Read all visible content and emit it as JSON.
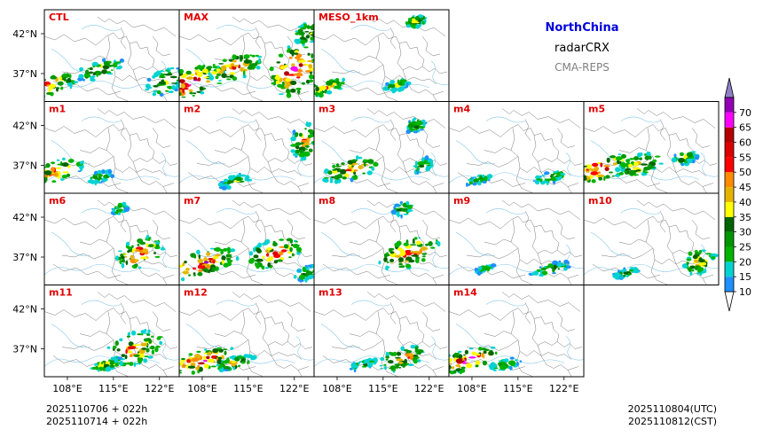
{
  "header": {
    "region": "NorthChina",
    "variable": "radarCRX",
    "system": "CMA-REPS",
    "region_color": "#0000dd",
    "system_color": "#808080"
  },
  "footer": {
    "init_utc": "2025110706  +  022h",
    "init_cst": "2025110714  +  022h",
    "valid_utc": "2025110804(UTC)",
    "valid_cst": "2025110812(CST)"
  },
  "chart_data": {
    "type": "heatmap",
    "title": "NorthChina radarCRX CMA-REPS",
    "panels": [
      {
        "label": "CTL",
        "row": 0,
        "col": 0,
        "blobs": [
          [
            105,
            35.5,
            0.45,
            0.3,
            0.7
          ],
          [
            113,
            37.5,
            0.35,
            0.25,
            0.5
          ],
          [
            123,
            36,
            0.3,
            0.35,
            0.5
          ]
        ]
      },
      {
        "label": "MAX",
        "row": 0,
        "col": 1,
        "blobs": [
          [
            106,
            35.8,
            0.55,
            0.4,
            1.0
          ],
          [
            113,
            37.8,
            0.4,
            0.35,
            0.8
          ],
          [
            122,
            37.5,
            0.35,
            0.7,
            1.0
          ],
          [
            124,
            42,
            0.2,
            0.3,
            0.6
          ]
        ]
      },
      {
        "label": "MESO_1km",
        "row": 0,
        "col": 2,
        "blobs": [
          [
            106,
            35.2,
            0.35,
            0.2,
            0.6
          ],
          [
            120,
            43.5,
            0.15,
            0.15,
            0.7
          ],
          [
            117,
            35.5,
            0.2,
            0.15,
            0.4
          ]
        ]
      },
      {
        "label": "m1",
        "row": 1,
        "col": 0,
        "blobs": [
          [
            106,
            36.2,
            0.45,
            0.3,
            0.7
          ],
          [
            113,
            35.5,
            0.2,
            0.15,
            0.4
          ]
        ]
      },
      {
        "label": "m2",
        "row": 1,
        "col": 1,
        "blobs": [
          [
            123.5,
            40,
            0.2,
            0.5,
            0.6
          ],
          [
            113,
            35,
            0.25,
            0.15,
            0.4
          ]
        ]
      },
      {
        "label": "m3",
        "row": 1,
        "col": 2,
        "blobs": [
          [
            110,
            36.5,
            0.45,
            0.3,
            0.7
          ],
          [
            120,
            42,
            0.15,
            0.2,
            0.4
          ],
          [
            121,
            37,
            0.15,
            0.2,
            0.4
          ]
        ]
      },
      {
        "label": "m4",
        "row": 1,
        "col": 3,
        "blobs": [
          [
            109,
            35.2,
            0.2,
            0.12,
            0.35
          ],
          [
            120,
            35.5,
            0.25,
            0.15,
            0.4
          ]
        ]
      },
      {
        "label": "m5",
        "row": 1,
        "col": 4,
        "blobs": [
          [
            107,
            36.5,
            0.5,
            0.35,
            0.9
          ],
          [
            113,
            37,
            0.35,
            0.3,
            0.6
          ],
          [
            120,
            38,
            0.2,
            0.2,
            0.4
          ]
        ]
      },
      {
        "label": "m6",
        "row": 2,
        "col": 0,
        "blobs": [
          [
            119,
            37.5,
            0.35,
            0.4,
            0.8
          ],
          [
            116,
            43,
            0.12,
            0.15,
            0.35
          ]
        ]
      },
      {
        "label": "m7",
        "row": 2,
        "col": 1,
        "blobs": [
          [
            108,
            36.2,
            0.55,
            0.35,
            0.9
          ],
          [
            119,
            37.5,
            0.4,
            0.4,
            0.8
          ],
          [
            124,
            35,
            0.2,
            0.2,
            0.4
          ]
        ]
      },
      {
        "label": "m8",
        "row": 2,
        "col": 2,
        "blobs": [
          [
            119,
            37.5,
            0.45,
            0.4,
            0.8
          ],
          [
            118,
            43,
            0.15,
            0.2,
            0.4
          ]
        ]
      },
      {
        "label": "m9",
        "row": 2,
        "col": 3,
        "blobs": [
          [
            120,
            35.5,
            0.3,
            0.15,
            0.4
          ],
          [
            110,
            35.5,
            0.15,
            0.1,
            0.3
          ]
        ]
      },
      {
        "label": "m10",
        "row": 2,
        "col": 4,
        "blobs": [
          [
            122,
            36.5,
            0.25,
            0.35,
            0.6
          ],
          [
            111,
            35,
            0.2,
            0.12,
            0.4
          ]
        ]
      },
      {
        "label": "m11",
        "row": 3,
        "col": 0,
        "blobs": [
          [
            118,
            37,
            0.45,
            0.45,
            0.75
          ],
          [
            114,
            35,
            0.25,
            0.15,
            0.5
          ]
        ]
      },
      {
        "label": "m12",
        "row": 3,
        "col": 1,
        "blobs": [
          [
            108,
            35.5,
            0.5,
            0.3,
            0.9
          ],
          [
            113,
            35.2,
            0.3,
            0.15,
            0.6
          ]
        ]
      },
      {
        "label": "m13",
        "row": 3,
        "col": 2,
        "blobs": [
          [
            118,
            35.8,
            0.35,
            0.3,
            0.7
          ],
          [
            112,
            35,
            0.2,
            0.12,
            0.4
          ]
        ]
      },
      {
        "label": "m14",
        "row": 3,
        "col": 3,
        "blobs": [
          [
            107,
            35.5,
            0.5,
            0.3,
            0.9
          ],
          [
            113,
            35,
            0.25,
            0.15,
            0.4
          ]
        ]
      }
    ],
    "x_range": [
      104.5,
      125
    ],
    "y_range": [
      33.5,
      45
    ],
    "x_ticks": [
      108,
      115,
      122
    ],
    "x_tick_labels": [
      "108°E",
      "115°E",
      "122°E"
    ],
    "y_ticks": [
      37,
      42
    ],
    "y_tick_labels": [
      "37°N",
      "42°N"
    ],
    "colorbar": {
      "levels": [
        10,
        15,
        20,
        25,
        30,
        35,
        40,
        45,
        50,
        55,
        60,
        65,
        70
      ],
      "labels": [
        "10",
        "15",
        "20",
        "25",
        "30",
        "35",
        "40",
        "45",
        "50",
        "55",
        "60",
        "65",
        "70"
      ],
      "colors": [
        "#1e90ff",
        "#00d2d2",
        "#00b400",
        "#009600",
        "#006400",
        "#ffff00",
        "#e6b400",
        "#ff8c00",
        "#ff0000",
        "#dc0000",
        "#b40000",
        "#ff00ff",
        "#9400b4"
      ],
      "under_color": "#ffffff",
      "over_color": "#9080c8",
      "extend": "both"
    }
  }
}
